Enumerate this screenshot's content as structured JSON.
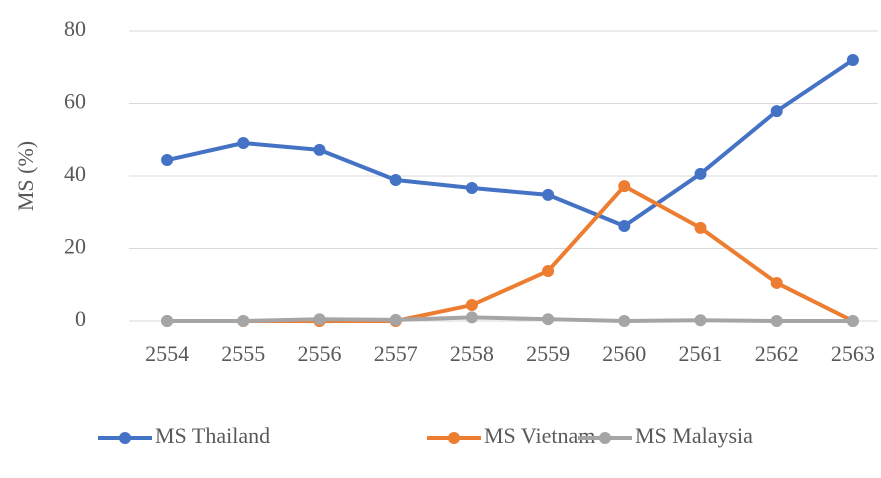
{
  "chart_data": {
    "type": "line",
    "categories": [
      "2554",
      "2555",
      "2556",
      "2557",
      "2558",
      "2559",
      "2560",
      "2561",
      "2562",
      "2563"
    ],
    "series": [
      {
        "name": "MS Thailand",
        "color": "#4472c4",
        "values": [
          44.4,
          49.1,
          47.2,
          38.9,
          36.7,
          34.8,
          26.2,
          40.6,
          57.9,
          72
        ]
      },
      {
        "name": "MS Vietnam",
        "color": "#ed7d31",
        "values": [
          0,
          0,
          0,
          0,
          4.4,
          13.8,
          37.2,
          25.7,
          10.5,
          0
        ]
      },
      {
        "name": "MS Malaysia",
        "color": "#a5a5a5",
        "values": [
          0,
          0,
          0.5,
          0.3,
          1,
          0.5,
          0,
          0.2,
          0,
          0
        ]
      }
    ],
    "ylabel": "MS (%)",
    "ylim": [
      0,
      80
    ],
    "yticks": [
      0,
      20,
      40,
      60,
      80
    ],
    "grid": true,
    "legend": "bottom"
  }
}
